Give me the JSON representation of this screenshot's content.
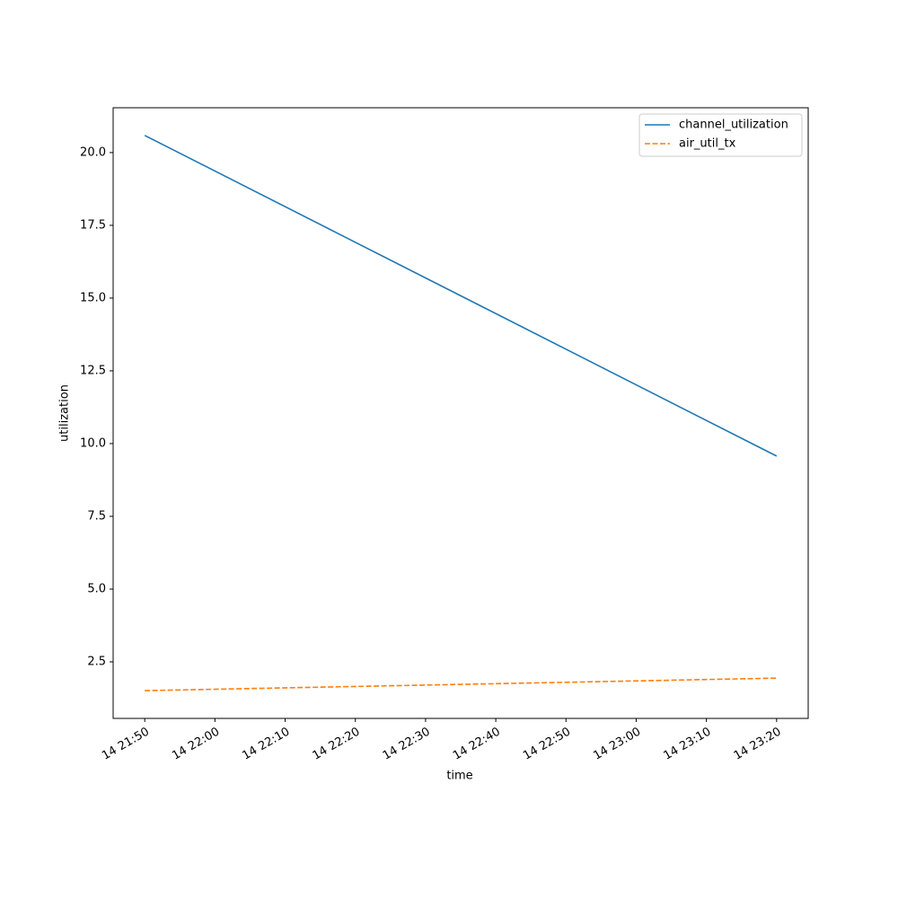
{
  "chart_data": {
    "type": "line",
    "x_label": "time",
    "y_label": "utilization",
    "x": [
      "14 21:50",
      "14 23:20"
    ],
    "series": [
      {
        "name": "channel_utilization",
        "color": "#1f77b4",
        "style": "solid",
        "values": [
          20.59,
          9.57
        ]
      },
      {
        "name": "air_util_tx",
        "color": "#ff7f0e",
        "style": "dashed",
        "values": [
          1.51,
          1.94
        ]
      }
    ],
    "xticks": [
      "14 21:50",
      "14 22:00",
      "14 22:10",
      "14 22:20",
      "14 22:30",
      "14 22:40",
      "14 22:50",
      "14 23:00",
      "14 23:10",
      "14 23:20"
    ],
    "ylim": [
      0.556,
      21.54
    ],
    "yticks": [
      2.5,
      {
        "value": 5,
        "label": "5.0"
      },
      7.5,
      {
        "value": 10,
        "label": "10.0"
      },
      12.5,
      {
        "value": 15,
        "label": "15.0"
      },
      17.5,
      {
        "value": 20,
        "label": "20.0"
      }
    ],
    "legend": "upper right",
    "grid": false
  }
}
